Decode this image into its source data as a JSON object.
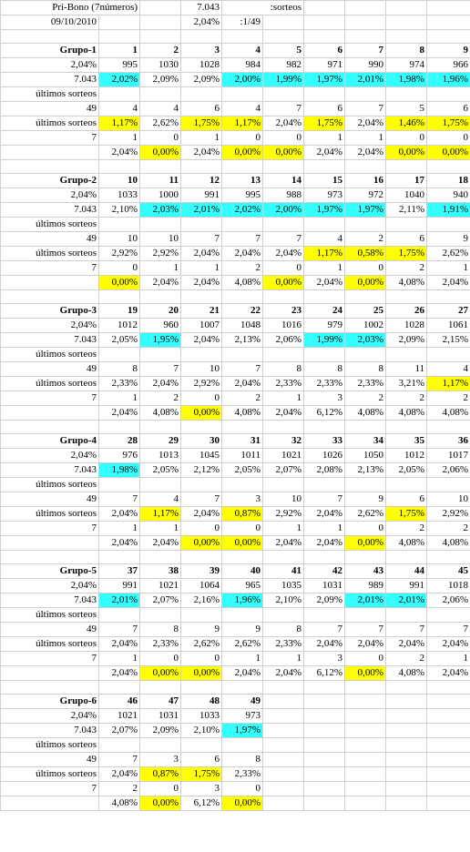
{
  "top": {
    "title": "Pri-Bono (7números)",
    "date": "09/10/2010",
    "sorteos_value": "7.043",
    "sorteos_label": ":sorteos",
    "prob_value": "2,04%",
    "prob_label": ":1/49"
  },
  "colors": {
    "cyan": "#33ffff",
    "yellow": "#ffff00",
    "header_red": "#cc0000"
  },
  "groups": [
    {
      "name": "Grupo-1",
      "pct": "2,04%",
      "total": "7.043",
      "label_ultimos": "últimos sorteos",
      "row_pct_label": "últimos sorteos",
      "last_n": "49",
      "last_m": "7",
      "numbers": [
        "1",
        "2",
        "3",
        "4",
        "5",
        "6",
        "7",
        "8",
        "9"
      ],
      "counts": [
        "995",
        "1030",
        "1028",
        "984",
        "982",
        "971",
        "990",
        "974",
        "966"
      ],
      "rates": [
        [
          "2,02%",
          "c"
        ],
        [
          "2,09%",
          ""
        ],
        [
          "2,09%",
          ""
        ],
        [
          "2,00%",
          "c"
        ],
        [
          "1,99%",
          "c"
        ],
        [
          "1,97%",
          "c"
        ],
        [
          "2,01%",
          "c"
        ],
        [
          "1,98%",
          "c"
        ],
        [
          "1,96%",
          "c"
        ]
      ],
      "last49": [
        "4",
        "4",
        "6",
        "4",
        "7",
        "6",
        "7",
        "5",
        "6"
      ],
      "last49pct": [
        [
          "1,17%",
          "y"
        ],
        [
          "2,62%",
          ""
        ],
        [
          "1,75%",
          "y"
        ],
        [
          "1,17%",
          "y"
        ],
        [
          "2,04%",
          ""
        ],
        [
          "1,75%",
          "y"
        ],
        [
          "2,04%",
          ""
        ],
        [
          "1,46%",
          "y"
        ],
        [
          "1,75%",
          "y"
        ]
      ],
      "last7": [
        "1",
        "0",
        "1",
        "0",
        "0",
        "1",
        "1",
        "0",
        "0"
      ],
      "last7pct": [
        [
          "2,04%",
          ""
        ],
        [
          "0,00%",
          "y"
        ],
        [
          "2,04%",
          ""
        ],
        [
          "0,00%",
          "y"
        ],
        [
          "0,00%",
          "y"
        ],
        [
          "2,04%",
          ""
        ],
        [
          "2,04%",
          ""
        ],
        [
          "0,00%",
          "y"
        ],
        [
          "0,00%",
          "y"
        ]
      ]
    },
    {
      "name": "Grupo-2",
      "pct": "2,04%",
      "total": "7.043",
      "label_ultimos": "últimos sorteos",
      "row_pct_label": "últimos sorteos",
      "last_n": "49",
      "last_m": "7",
      "numbers": [
        "10",
        "11",
        "12",
        "13",
        "14",
        "15",
        "16",
        "17",
        "18"
      ],
      "counts": [
        "1033",
        "1000",
        "991",
        "995",
        "988",
        "973",
        "972",
        "1040",
        "940"
      ],
      "rates": [
        [
          "2,10%",
          ""
        ],
        [
          "2,03%",
          "c"
        ],
        [
          "2,01%",
          "c"
        ],
        [
          "2,02%",
          "c"
        ],
        [
          "2,00%",
          "c"
        ],
        [
          "1,97%",
          "c"
        ],
        [
          "1,97%",
          "c"
        ],
        [
          "2,11%",
          ""
        ],
        [
          "1,91%",
          "c"
        ]
      ],
      "last49": [
        "10",
        "10",
        "7",
        "7",
        "7",
        "4",
        "2",
        "6",
        "9"
      ],
      "last49pct": [
        [
          "2,92%",
          ""
        ],
        [
          "2,92%",
          ""
        ],
        [
          "2,04%",
          ""
        ],
        [
          "2,04%",
          ""
        ],
        [
          "2,04%",
          ""
        ],
        [
          "1,17%",
          "y"
        ],
        [
          "0,58%",
          "y"
        ],
        [
          "1,75%",
          "y"
        ],
        [
          "2,62%",
          ""
        ]
      ],
      "last7": [
        "0",
        "1",
        "1",
        "2",
        "0",
        "1",
        "0",
        "2",
        "1"
      ],
      "last7pct": [
        [
          "0,00%",
          "y"
        ],
        [
          "2,04%",
          ""
        ],
        [
          "2,04%",
          ""
        ],
        [
          "4,08%",
          ""
        ],
        [
          "0,00%",
          "y"
        ],
        [
          "2,04%",
          ""
        ],
        [
          "0,00%",
          "y"
        ],
        [
          "4,08%",
          ""
        ],
        [
          "2,04%",
          ""
        ]
      ]
    },
    {
      "name": "Grupo-3",
      "pct": "2,04%",
      "total": "7.043",
      "label_ultimos": "últimos sorteos",
      "row_pct_label": "últimos sorteos",
      "last_n": "49",
      "last_m": "7",
      "numbers": [
        "19",
        "20",
        "21",
        "22",
        "23",
        "24",
        "25",
        "26",
        "27"
      ],
      "counts": [
        "1012",
        "960",
        "1007",
        "1048",
        "1016",
        "979",
        "1002",
        "1028",
        "1061"
      ],
      "rates": [
        [
          "2,05%",
          ""
        ],
        [
          "1,95%",
          "c"
        ],
        [
          "2,04%",
          ""
        ],
        [
          "2,13%",
          ""
        ],
        [
          "2,06%",
          ""
        ],
        [
          "1,99%",
          "c"
        ],
        [
          "2,03%",
          "c"
        ],
        [
          "2,09%",
          ""
        ],
        [
          "2,15%",
          ""
        ]
      ],
      "last49": [
        "8",
        "7",
        "10",
        "7",
        "8",
        "8",
        "8",
        "11",
        "4"
      ],
      "last49pct": [
        [
          "2,33%",
          ""
        ],
        [
          "2,04%",
          ""
        ],
        [
          "2,92%",
          ""
        ],
        [
          "2,04%",
          ""
        ],
        [
          "2,33%",
          ""
        ],
        [
          "2,33%",
          ""
        ],
        [
          "2,33%",
          ""
        ],
        [
          "3,21%",
          ""
        ],
        [
          "1,17%",
          "y"
        ]
      ],
      "last7": [
        "1",
        "2",
        "0",
        "2",
        "1",
        "3",
        "2",
        "2",
        "2"
      ],
      "last7pct": [
        [
          "2,04%",
          ""
        ],
        [
          "4,08%",
          ""
        ],
        [
          "0,00%",
          "y"
        ],
        [
          "4,08%",
          ""
        ],
        [
          "2,04%",
          ""
        ],
        [
          "6,12%",
          ""
        ],
        [
          "4,08%",
          ""
        ],
        [
          "4,08%",
          ""
        ],
        [
          "4,08%",
          ""
        ]
      ]
    },
    {
      "name": "Grupo-4",
      "pct": "2,04%",
      "total": "7.043",
      "label_ultimos": "últimos sorteos",
      "row_pct_label": "últimos sorteos",
      "last_n": "49",
      "last_m": "7",
      "numbers": [
        "28",
        "29",
        "30",
        "31",
        "32",
        "33",
        "34",
        "35",
        "36"
      ],
      "counts": [
        "976",
        "1013",
        "1045",
        "1011",
        "1021",
        "1026",
        "1050",
        "1012",
        "1017"
      ],
      "rates": [
        [
          "1,98%",
          "c"
        ],
        [
          "2,05%",
          ""
        ],
        [
          "2,12%",
          ""
        ],
        [
          "2,05%",
          ""
        ],
        [
          "2,07%",
          ""
        ],
        [
          "2,08%",
          ""
        ],
        [
          "2,13%",
          ""
        ],
        [
          "2,05%",
          ""
        ],
        [
          "2,06%",
          ""
        ]
      ],
      "last49": [
        "7",
        "4",
        "7",
        "3",
        "10",
        "7",
        "9",
        "6",
        "10"
      ],
      "last49pct": [
        [
          "2,04%",
          ""
        ],
        [
          "1,17%",
          "y"
        ],
        [
          "2,04%",
          ""
        ],
        [
          "0,87%",
          "y"
        ],
        [
          "2,92%",
          ""
        ],
        [
          "2,04%",
          ""
        ],
        [
          "2,62%",
          ""
        ],
        [
          "1,75%",
          "y"
        ],
        [
          "2,92%",
          ""
        ]
      ],
      "last7": [
        "1",
        "1",
        "0",
        "0",
        "1",
        "1",
        "0",
        "2",
        "2"
      ],
      "last7pct": [
        [
          "2,04%",
          ""
        ],
        [
          "2,04%",
          ""
        ],
        [
          "0,00%",
          "y"
        ],
        [
          "0,00%",
          "y"
        ],
        [
          "2,04%",
          ""
        ],
        [
          "2,04%",
          ""
        ],
        [
          "0,00%",
          "y"
        ],
        [
          "4,08%",
          ""
        ],
        [
          "4,08%",
          ""
        ]
      ]
    },
    {
      "name": "Grupo-5",
      "pct": "2,04%",
      "total": "7.043",
      "label_ultimos": "últimos sorteos",
      "row_pct_label": "últimos sorteos",
      "last_n": "49",
      "last_m": "7",
      "numbers": [
        "37",
        "38",
        "39",
        "40",
        "41",
        "42",
        "43",
        "44",
        "45"
      ],
      "counts": [
        "991",
        "1021",
        "1064",
        "965",
        "1035",
        "1031",
        "989",
        "991",
        "1018"
      ],
      "rates": [
        [
          "2,01%",
          "c"
        ],
        [
          "2,07%",
          ""
        ],
        [
          "2,16%",
          ""
        ],
        [
          "1,96%",
          "c"
        ],
        [
          "2,10%",
          ""
        ],
        [
          "2,09%",
          ""
        ],
        [
          "2,01%",
          "c"
        ],
        [
          "2,01%",
          "c"
        ],
        [
          "2,06%",
          ""
        ]
      ],
      "last49": [
        "7",
        "8",
        "9",
        "9",
        "8",
        "7",
        "7",
        "7",
        "7"
      ],
      "last49pct": [
        [
          "2,04%",
          ""
        ],
        [
          "2,33%",
          ""
        ],
        [
          "2,62%",
          ""
        ],
        [
          "2,62%",
          ""
        ],
        [
          "2,33%",
          ""
        ],
        [
          "2,04%",
          ""
        ],
        [
          "2,04%",
          ""
        ],
        [
          "2,04%",
          ""
        ],
        [
          "2,04%",
          ""
        ]
      ],
      "last7": [
        "1",
        "0",
        "0",
        "1",
        "1",
        "3",
        "0",
        "2",
        "1"
      ],
      "last7pct": [
        [
          "2,04%",
          ""
        ],
        [
          "0,00%",
          "y"
        ],
        [
          "0,00%",
          "y"
        ],
        [
          "2,04%",
          ""
        ],
        [
          "2,04%",
          ""
        ],
        [
          "6,12%",
          ""
        ],
        [
          "0,00%",
          "y"
        ],
        [
          "4,08%",
          ""
        ],
        [
          "2,04%",
          ""
        ]
      ]
    },
    {
      "name": "Grupo-6",
      "pct": "2,04%",
      "total": "7.043",
      "label_ultimos": "últimos sorteos",
      "row_pct_label": "últimos sorteos",
      "last_n": "49",
      "last_m": "7",
      "numbers": [
        "46",
        "47",
        "48",
        "49"
      ],
      "counts": [
        "1021",
        "1031",
        "1033",
        "973"
      ],
      "rates": [
        [
          "2,07%",
          ""
        ],
        [
          "2,09%",
          ""
        ],
        [
          "2,10%",
          ""
        ],
        [
          "1,97%",
          "c"
        ]
      ],
      "last49": [
        "7",
        "3",
        "6",
        "8"
      ],
      "last49pct": [
        [
          "2,04%",
          ""
        ],
        [
          "0,87%",
          "y"
        ],
        [
          "1,75%",
          "y"
        ],
        [
          "2,33%",
          ""
        ]
      ],
      "last7": [
        "2",
        "0",
        "3",
        "0"
      ],
      "last7pct": [
        [
          "4,08%",
          ""
        ],
        [
          "0,00%",
          "y"
        ],
        [
          "6,12%",
          ""
        ],
        [
          "0,00%",
          "y"
        ]
      ]
    }
  ]
}
